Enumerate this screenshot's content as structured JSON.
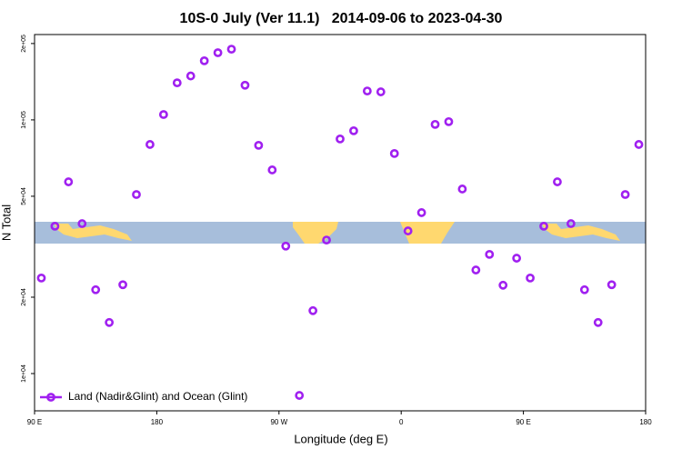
{
  "chart_data": {
    "type": "scatter",
    "title": "10S-0 July (Ver 11.1)   2014-09-06 to 2023-04-30",
    "x_label": "Longitude (deg E)",
    "y_label": "N Total",
    "x": [
      95,
      105,
      115,
      125,
      135,
      145,
      155,
      165,
      175,
      185,
      195,
      205,
      215,
      225,
      235,
      245,
      255,
      265,
      275,
      285,
      295,
      305,
      315,
      325,
      335,
      345,
      355,
      365,
      375,
      385,
      395,
      405,
      415,
      425,
      435,
      445,
      455,
      465,
      475,
      485,
      495,
      505,
      515,
      525,
      535
    ],
    "series": [
      {
        "name": "Land (Nadir&Glint) and Ocean (Glint)",
        "color": "#a020f0",
        "values": [
          23800,
          38100,
          57000,
          39000,
          21400,
          15900,
          22400,
          50800,
          80000,
          105000,
          140000,
          149000,
          171000,
          184000,
          190000,
          137000,
          79400,
          63500,
          31800,
          8200,
          17700,
          33600,
          84100,
          90600,
          130000,
          129000,
          73700,
          36500,
          43100,
          96000,
          98400,
          53400,
          25600,
          29500,
          22300,
          28500,
          23800,
          38100,
          57000,
          39000,
          21400,
          15900,
          22400,
          50800,
          80000
        ]
      }
    ],
    "xlim": [
      90,
      540
    ],
    "xticks": [
      {
        "value": 90,
        "label": "90 E"
      },
      180,
      {
        "value": 270,
        "label": "90 W"
      },
      {
        "value": 360,
        "label": "0"
      },
      {
        "value": 450,
        "label": "90 E"
      },
      {
        "value": 540,
        "label": "180"
      }
    ],
    "ylim": [
      7130,
      217000
    ],
    "yticks": [
      {
        "value": 10000,
        "label": "1e+04"
      },
      {
        "value": 20000,
        "label": "2e+04"
      },
      {
        "value": 50000,
        "label": "5e+04"
      },
      {
        "value": 100000,
        "label": "1e+05"
      },
      {
        "value": 200000,
        "label": "2e+05"
      }
    ],
    "y_log": true,
    "legend": "bottom-left"
  }
}
